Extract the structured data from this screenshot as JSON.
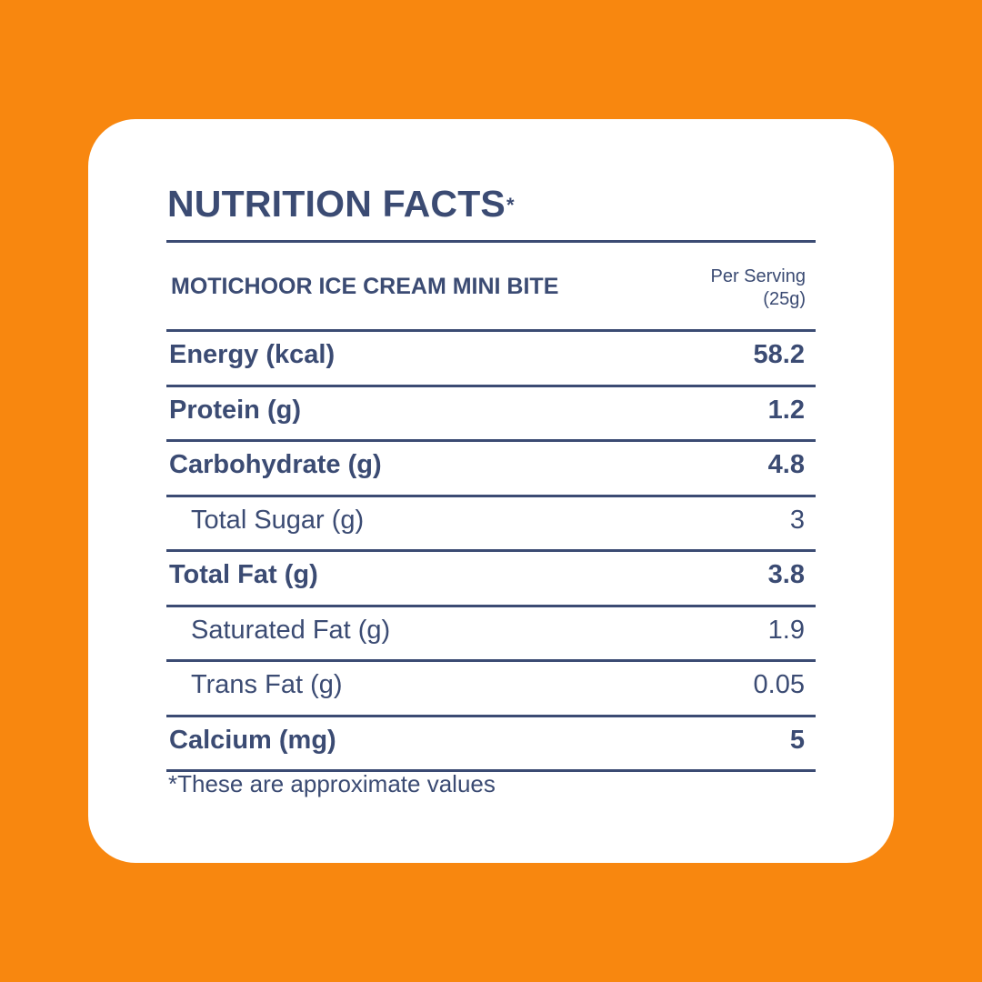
{
  "title": "NUTRITION FACTS",
  "title_mark": "*",
  "product": "MOTICHOOR ICE CREAM MINI BITE",
  "serving": {
    "line1": "Per Serving",
    "line2": "(25g)"
  },
  "rows": [
    {
      "label": "Energy (kcal)",
      "value": "58.2"
    },
    {
      "label": "Protein (g)",
      "value": "1.2"
    },
    {
      "label": "Carbohydrate (g)",
      "value": "4.8"
    },
    {
      "label": "Total Sugar (g)",
      "value": "3"
    },
    {
      "label": "Total Fat (g)",
      "value": "3.8"
    },
    {
      "label": "Saturated Fat (g)",
      "value": "1.9"
    },
    {
      "label": "Trans Fat (g)",
      "value": "0.05"
    },
    {
      "label": "Calcium (mg)",
      "value": "5"
    }
  ],
  "footnote": "*These are approximate values",
  "colors": {
    "background": "#f8870f",
    "card": "#ffffff",
    "text": "#3b4b73"
  }
}
